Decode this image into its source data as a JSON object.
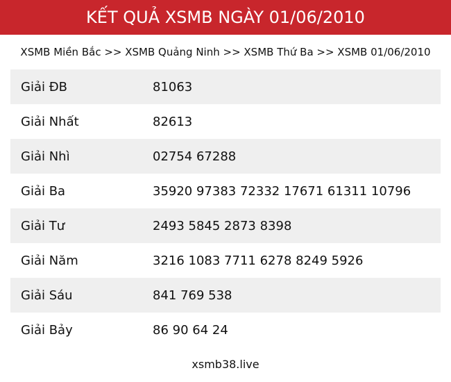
{
  "header": {
    "title": "KẾT QUẢ XSMB NGÀY 01/06/2010"
  },
  "breadcrumb": "XSMB Miền Bắc >> XSMB Quảng Ninh >> XSMB Thứ Ba >> XSMB 01/06/2010",
  "table": {
    "rows": [
      [
        "Giải ĐB",
        "81063"
      ],
      [
        "Giải Nhất",
        "82613"
      ],
      [
        "Giải Nhì",
        "02754 67288"
      ],
      [
        "Giải Ba",
        "35920 97383 72332 17671 61311 10796"
      ],
      [
        "Giải Tư",
        "2493 5845 2873 8398"
      ],
      [
        "Giải Năm",
        "3216 1083 7711 6278 8249 5926"
      ],
      [
        "Giải Sáu",
        "841 769 538"
      ],
      [
        "Giải Bảy",
        "86 90 64 24"
      ]
    ]
  },
  "footer": "xsmb38.live"
}
